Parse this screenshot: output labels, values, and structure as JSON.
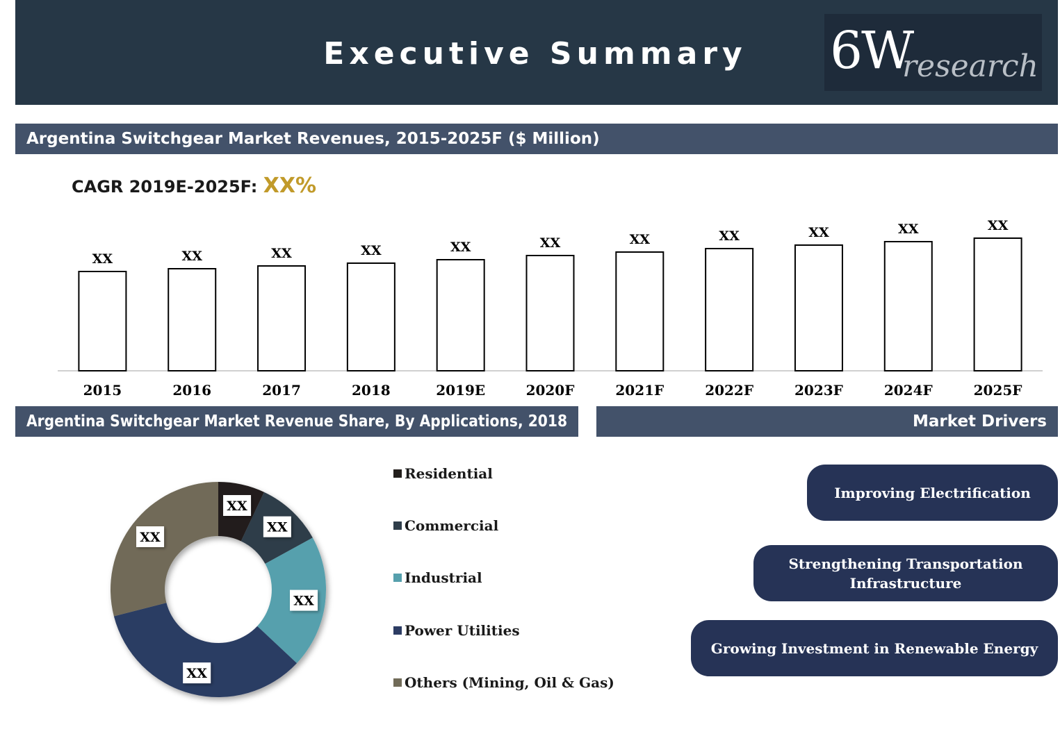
{
  "header": {
    "title": "Executive Summary",
    "logo_main": "6W",
    "logo_sub": "research"
  },
  "revenue_section": {
    "title": "Argentina Switchgear Market Revenues, 2015-2025F ($ Million)",
    "cagr_label": "CAGR 2019E-2025F:",
    "cagr_value": "XX%"
  },
  "share_section": {
    "title": "Argentina Switchgear Market Revenue Share, By Applications, 2018"
  },
  "drivers_section": {
    "title": "Market Drivers",
    "items": [
      "Improving Electrification",
      "Strengthening Transportation Infrastructure",
      "Growing Investment in Renewable Energy"
    ]
  },
  "colors": {
    "header_bg": "#263746",
    "section_bar": "#43526a",
    "driver_bg": "#263356",
    "cagr_accent": "#c19a2a"
  },
  "chart_data": [
    {
      "type": "bar",
      "title": "Argentina Switchgear Market Revenues, 2015-2025F ($ Million)",
      "categories": [
        "2015",
        "2016",
        "2017",
        "2018",
        "2019E",
        "2020F",
        "2021F",
        "2022F",
        "2023F",
        "2024F",
        "2025F"
      ],
      "values": [
        143,
        147,
        151,
        155,
        160,
        166,
        171,
        176,
        181,
        186,
        191
      ],
      "value_labels": [
        "XX",
        "XX",
        "XX",
        "XX",
        "XX",
        "XX",
        "XX",
        "XX",
        "XX",
        "XX",
        "XX"
      ],
      "ylim": [
        0,
        200
      ],
      "grid": false,
      "bar_fill": "#ffffff",
      "bar_stroke": "#000000"
    },
    {
      "type": "pie",
      "donut": true,
      "title": "Argentina Switchgear Market Revenue Share, By Applications, 2018",
      "categories": [
        "Residential",
        "Commercial",
        "Industrial",
        "Power Utilities",
        "Others (Mining, Oil & Gas)"
      ],
      "values": [
        7,
        10,
        20,
        34,
        29
      ],
      "value_labels": [
        "XX",
        "XX",
        "XX",
        "XX",
        "XX"
      ],
      "colors": [
        "#231f1c",
        "#2f3d4a",
        "#56a0ad",
        "#2c3c63",
        "#716b58"
      ],
      "legend_position": "right"
    }
  ]
}
